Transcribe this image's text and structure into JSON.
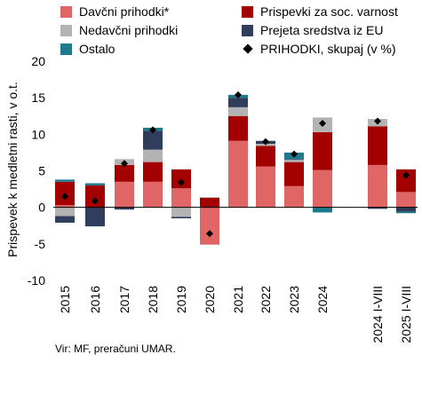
{
  "chart_data": {
    "type": "bar",
    "stacked": true,
    "ylabel": "Prispevek k medletni rasti, v o.t.",
    "ylim": [
      -10,
      20
    ],
    "yticks": [
      -10,
      -5,
      0,
      5,
      10,
      15,
      20
    ],
    "grid": false,
    "legend_position": "top",
    "categories": [
      "2015",
      "2016",
      "2017",
      "2018",
      "2019",
      "2020",
      "2021",
      "2022",
      "2023",
      "2024",
      "2024 I-VIII",
      "2025 I-VIII"
    ],
    "series": [
      {
        "name": "Davčni prihodki*",
        "color": "#e06666",
        "values": [
          0.3,
          0.0,
          3.5,
          3.5,
          2.6,
          -5.1,
          9.1,
          5.6,
          2.9,
          5.1,
          5.8,
          2.1
        ]
      },
      {
        "name": "Prispevki za soc. varnost",
        "color": "#a30000",
        "values": [
          3.2,
          3.0,
          2.3,
          2.7,
          2.6,
          1.3,
          3.4,
          2.8,
          3.3,
          5.2,
          5.3,
          3.1
        ]
      },
      {
        "name": "Nedavčni prihodki",
        "color": "#b3b3b3",
        "values": [
          -1.2,
          0.0,
          0.8,
          1.7,
          -1.3,
          0.1,
          1.2,
          0.3,
          0.3,
          2.0,
          1.0,
          0.0
        ]
      },
      {
        "name": "Prejeta sredstva iz EU",
        "color": "#313d5c",
        "values": [
          -0.9,
          -2.6,
          -0.3,
          2.6,
          -0.2,
          0.0,
          1.3,
          0.4,
          0.1,
          0.0,
          -0.2,
          -0.6
        ]
      },
      {
        "name": "Ostalo",
        "color": "#1e7a8c",
        "values": [
          0.3,
          0.3,
          0.0,
          0.4,
          0.0,
          0.0,
          0.4,
          0.0,
          0.9,
          -0.7,
          0.0,
          -0.2
        ]
      }
    ],
    "total": {
      "name": "PRIHODKI, skupaj (v %)",
      "values": [
        1.5,
        0.9,
        6.0,
        10.6,
        3.4,
        -3.6,
        15.4,
        9.0,
        7.3,
        11.5,
        11.8,
        4.4
      ]
    }
  },
  "source": "Vir: MF, preračuni UMAR."
}
